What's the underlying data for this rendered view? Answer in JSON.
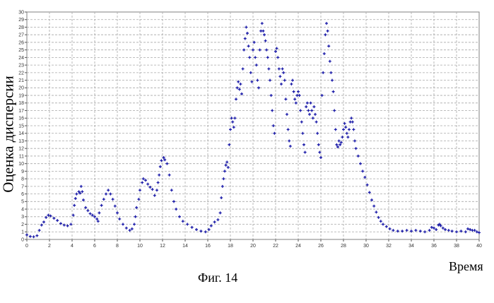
{
  "chart_data": {
    "type": "scatter",
    "title": "",
    "xlabel": "Время",
    "ylabel": "Оценка дисперсии",
    "xlim": [
      0,
      40
    ],
    "ylim": [
      0,
      30
    ],
    "x_ticks": [
      0,
      2,
      4,
      6,
      8,
      10,
      12,
      14,
      16,
      18,
      20,
      22,
      24,
      26,
      28,
      30,
      32,
      34,
      36,
      38,
      40
    ],
    "y_ticks": [
      0,
      1,
      2,
      3,
      4,
      5,
      6,
      7,
      8,
      9,
      10,
      11,
      12,
      13,
      14,
      15,
      16,
      17,
      18,
      19,
      20,
      21,
      22,
      23,
      24,
      25,
      26,
      27,
      28,
      29,
      30
    ],
    "grid": true,
    "marker_color": "#1a1aa8",
    "series": [
      {
        "points": [
          [
            0,
            0.6
          ],
          [
            0.3,
            0.4
          ],
          [
            0.6,
            0.35
          ],
          [
            0.9,
            0.5
          ],
          [
            1.1,
            1.2
          ],
          [
            1.3,
            1.9
          ],
          [
            1.5,
            2.3
          ],
          [
            1.7,
            2.9
          ],
          [
            1.9,
            3.2
          ],
          [
            2.1,
            3.1
          ],
          [
            2.4,
            2.8
          ],
          [
            2.7,
            2.5
          ],
          [
            3.0,
            2.1
          ],
          [
            3.3,
            1.9
          ],
          [
            3.6,
            1.8
          ],
          [
            3.9,
            2.0
          ],
          [
            4.1,
            3.2
          ],
          [
            4.2,
            4.5
          ],
          [
            4.3,
            5.4
          ],
          [
            4.4,
            6.0
          ],
          [
            4.6,
            6.3
          ],
          [
            4.7,
            6.1
          ],
          [
            4.8,
            7.0
          ],
          [
            4.9,
            6.3
          ],
          [
            5.0,
            5.2
          ],
          [
            5.2,
            4.2
          ],
          [
            5.4,
            3.8
          ],
          [
            5.6,
            3.4
          ],
          [
            5.8,
            3.2
          ],
          [
            6.0,
            3.0
          ],
          [
            6.2,
            2.7
          ],
          [
            6.3,
            2.4
          ],
          [
            6.4,
            3.5
          ],
          [
            6.6,
            4.5
          ],
          [
            6.8,
            5.3
          ],
          [
            7.0,
            6.0
          ],
          [
            7.2,
            6.5
          ],
          [
            7.4,
            6.0
          ],
          [
            7.6,
            5.3
          ],
          [
            7.8,
            4.4
          ],
          [
            8.0,
            3.5
          ],
          [
            8.2,
            2.7
          ],
          [
            8.5,
            2.0
          ],
          [
            8.8,
            1.5
          ],
          [
            9.1,
            1.2
          ],
          [
            9.3,
            1.4
          ],
          [
            9.5,
            2.0
          ],
          [
            9.6,
            3.0
          ],
          [
            9.7,
            4.2
          ],
          [
            9.9,
            5.3
          ],
          [
            10.0,
            6.5
          ],
          [
            10.2,
            7.5
          ],
          [
            10.3,
            8.0
          ],
          [
            10.5,
            7.8
          ],
          [
            10.7,
            7.3
          ],
          [
            10.9,
            6.9
          ],
          [
            11.1,
            6.6
          ],
          [
            11.3,
            5.8
          ],
          [
            11.5,
            6.5
          ],
          [
            11.6,
            7.5
          ],
          [
            11.7,
            8.5
          ],
          [
            11.8,
            9.6
          ],
          [
            11.9,
            10.4
          ],
          [
            12.1,
            10.8
          ],
          [
            12.2,
            10.5
          ],
          [
            12.4,
            10.0
          ],
          [
            12.6,
            8.5
          ],
          [
            12.8,
            6.5
          ],
          [
            13.0,
            5.0
          ],
          [
            13.2,
            4.0
          ],
          [
            13.5,
            3.0
          ],
          [
            13.8,
            2.4
          ],
          [
            14.2,
            2.0
          ],
          [
            14.6,
            1.6
          ],
          [
            15.0,
            1.3
          ],
          [
            15.4,
            1.1
          ],
          [
            15.8,
            1.0
          ],
          [
            16.1,
            1.3
          ],
          [
            16.3,
            1.8
          ],
          [
            16.6,
            2.3
          ],
          [
            16.9,
            2.6
          ],
          [
            17.1,
            3.5
          ],
          [
            17.2,
            5.5
          ],
          [
            17.3,
            7.0
          ],
          [
            17.4,
            8.0
          ],
          [
            17.5,
            9.0
          ],
          [
            17.6,
            9.8
          ],
          [
            17.7,
            10.2
          ],
          [
            17.8,
            9.5
          ],
          [
            17.9,
            12.5
          ],
          [
            18.0,
            14.5
          ],
          [
            18.1,
            16.0
          ],
          [
            18.2,
            15.5
          ],
          [
            18.3,
            14.8
          ],
          [
            18.4,
            16.0
          ],
          [
            18.5,
            18.5
          ],
          [
            18.6,
            20.0
          ],
          [
            18.7,
            20.8
          ],
          [
            18.8,
            19.8
          ],
          [
            18.9,
            20.5
          ],
          [
            19.0,
            19.2
          ],
          [
            19.1,
            22.5
          ],
          [
            19.2,
            25.0
          ],
          [
            19.3,
            26.5
          ],
          [
            19.4,
            28.0
          ],
          [
            19.5,
            27.2
          ],
          [
            19.6,
            25.5
          ],
          [
            19.7,
            24.0
          ],
          [
            19.8,
            22.0
          ],
          [
            19.9,
            20.8
          ],
          [
            20.0,
            25.0
          ],
          [
            20.1,
            26.0
          ],
          [
            20.2,
            24.0
          ],
          [
            20.3,
            23.0
          ],
          [
            20.4,
            21.0
          ],
          [
            20.5,
            20.0
          ],
          [
            20.6,
            25.0
          ],
          [
            20.7,
            27.5
          ],
          [
            20.8,
            28.5
          ],
          [
            20.9,
            27.5
          ],
          [
            21.0,
            27.0
          ],
          [
            21.1,
            26.2
          ],
          [
            21.2,
            25.0
          ],
          [
            21.3,
            24.0
          ],
          [
            21.4,
            22.5
          ],
          [
            21.5,
            21.0
          ],
          [
            21.6,
            19.0
          ],
          [
            21.7,
            17.0
          ],
          [
            21.8,
            15.0
          ],
          [
            21.9,
            14.0
          ],
          [
            22.0,
            24.8
          ],
          [
            22.1,
            25.2
          ],
          [
            22.2,
            24.0
          ],
          [
            22.3,
            22.5
          ],
          [
            22.4,
            21.5
          ],
          [
            22.5,
            20.5
          ],
          [
            22.6,
            22.5
          ],
          [
            22.7,
            22.0
          ],
          [
            22.8,
            21.0
          ],
          [
            22.9,
            18.5
          ],
          [
            23.0,
            16.5
          ],
          [
            23.1,
            14.5
          ],
          [
            23.2,
            13.0
          ],
          [
            23.3,
            12.3
          ],
          [
            23.4,
            20.5
          ],
          [
            23.5,
            21.0
          ],
          [
            23.6,
            19.5
          ],
          [
            23.7,
            18.5
          ],
          [
            23.8,
            18.0
          ],
          [
            23.9,
            19.0
          ],
          [
            24.0,
            19.5
          ],
          [
            24.1,
            19.0
          ],
          [
            24.2,
            17.0
          ],
          [
            24.3,
            15.5
          ],
          [
            24.4,
            14.0
          ],
          [
            24.5,
            12.5
          ],
          [
            24.6,
            11.5
          ],
          [
            24.7,
            17.5
          ],
          [
            24.8,
            18.0
          ],
          [
            24.9,
            17.0
          ],
          [
            25.0,
            16.5
          ],
          [
            25.1,
            18.0
          ],
          [
            25.2,
            17.0
          ],
          [
            25.3,
            16.0
          ],
          [
            25.4,
            17.5
          ],
          [
            25.5,
            16.5
          ],
          [
            25.6,
            15.5
          ],
          [
            25.7,
            14.0
          ],
          [
            25.8,
            12.5
          ],
          [
            25.9,
            11.5
          ],
          [
            26.0,
            10.8
          ],
          [
            26.1,
            19.0
          ],
          [
            26.2,
            22.0
          ],
          [
            26.3,
            24.5
          ],
          [
            26.4,
            27.0
          ],
          [
            26.5,
            28.5
          ],
          [
            26.6,
            27.5
          ],
          [
            26.7,
            25.5
          ],
          [
            26.8,
            23.5
          ],
          [
            26.9,
            22.0
          ],
          [
            27.0,
            21.0
          ],
          [
            27.1,
            19.5
          ],
          [
            27.2,
            17.0
          ],
          [
            27.3,
            14.5
          ],
          [
            27.4,
            12.5
          ],
          [
            27.5,
            12.2
          ],
          [
            27.6,
            13.0
          ],
          [
            27.7,
            12.5
          ],
          [
            27.8,
            12.8
          ],
          [
            27.9,
            13.5
          ],
          [
            28.0,
            14.5
          ],
          [
            28.1,
            15.3
          ],
          [
            28.2,
            14.8
          ],
          [
            28.3,
            14.0
          ],
          [
            28.4,
            13.5
          ],
          [
            28.5,
            14.5
          ],
          [
            28.6,
            15.5
          ],
          [
            28.7,
            16.0
          ],
          [
            28.8,
            15.5
          ],
          [
            28.9,
            14.5
          ],
          [
            29.0,
            13.0
          ],
          [
            29.1,
            12.0
          ],
          [
            29.3,
            11.0
          ],
          [
            29.5,
            10.0
          ],
          [
            29.7,
            9.0
          ],
          [
            29.9,
            8.2
          ],
          [
            30.1,
            7.2
          ],
          [
            30.3,
            6.2
          ],
          [
            30.5,
            5.2
          ],
          [
            30.7,
            4.4
          ],
          [
            30.9,
            3.6
          ],
          [
            31.1,
            2.9
          ],
          [
            31.3,
            2.4
          ],
          [
            31.5,
            2.0
          ],
          [
            31.8,
            1.7
          ],
          [
            32.1,
            1.4
          ],
          [
            32.4,
            1.2
          ],
          [
            32.8,
            1.1
          ],
          [
            33.2,
            1.1
          ],
          [
            33.6,
            1.2
          ],
          [
            34.0,
            1.1
          ],
          [
            34.4,
            1.2
          ],
          [
            34.8,
            1.1
          ],
          [
            35.2,
            1.0
          ],
          [
            35.6,
            1.2
          ],
          [
            35.8,
            1.6
          ],
          [
            36.0,
            1.5
          ],
          [
            36.2,
            1.3
          ],
          [
            36.4,
            1.9
          ],
          [
            36.5,
            2.0
          ],
          [
            36.6,
            1.8
          ],
          [
            36.8,
            1.5
          ],
          [
            37.0,
            1.3
          ],
          [
            37.3,
            1.2
          ],
          [
            37.6,
            1.1
          ],
          [
            38.0,
            1.0
          ],
          [
            38.4,
            1.1
          ],
          [
            38.8,
            1.0
          ],
          [
            39.0,
            1.4
          ],
          [
            39.2,
            1.3
          ],
          [
            39.4,
            1.2
          ],
          [
            39.6,
            1.2
          ],
          [
            39.8,
            1.0
          ],
          [
            40.0,
            0.9
          ]
        ]
      }
    ]
  },
  "labels": {
    "xlabel": "Время",
    "ylabel": "Оценка дисперсии",
    "caption": "Фиг. 14"
  }
}
